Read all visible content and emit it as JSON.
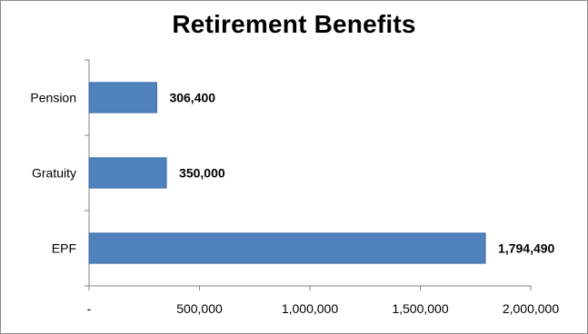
{
  "chart_data": {
    "type": "bar",
    "orientation": "horizontal",
    "title": "Retirement Benefits",
    "categories": [
      "Pension",
      "Gratuity",
      "EPF"
    ],
    "values": [
      306400,
      350000,
      1794490
    ],
    "data_labels": [
      "306,400",
      "350,000",
      "1,794,490"
    ],
    "xlim": [
      0,
      2000000
    ],
    "x_ticks": [
      0,
      500000,
      1000000,
      1500000,
      2000000
    ],
    "x_tick_labels": [
      "-",
      "500,000",
      "1,000,000",
      "1,500,000",
      "2,000,000"
    ],
    "xlabel": "",
    "ylabel": "",
    "grid": false,
    "legend": "none",
    "bar_color": "#4f81bd",
    "bar_edge_color": "#3a6aa0",
    "axis_color": "#868686"
  }
}
